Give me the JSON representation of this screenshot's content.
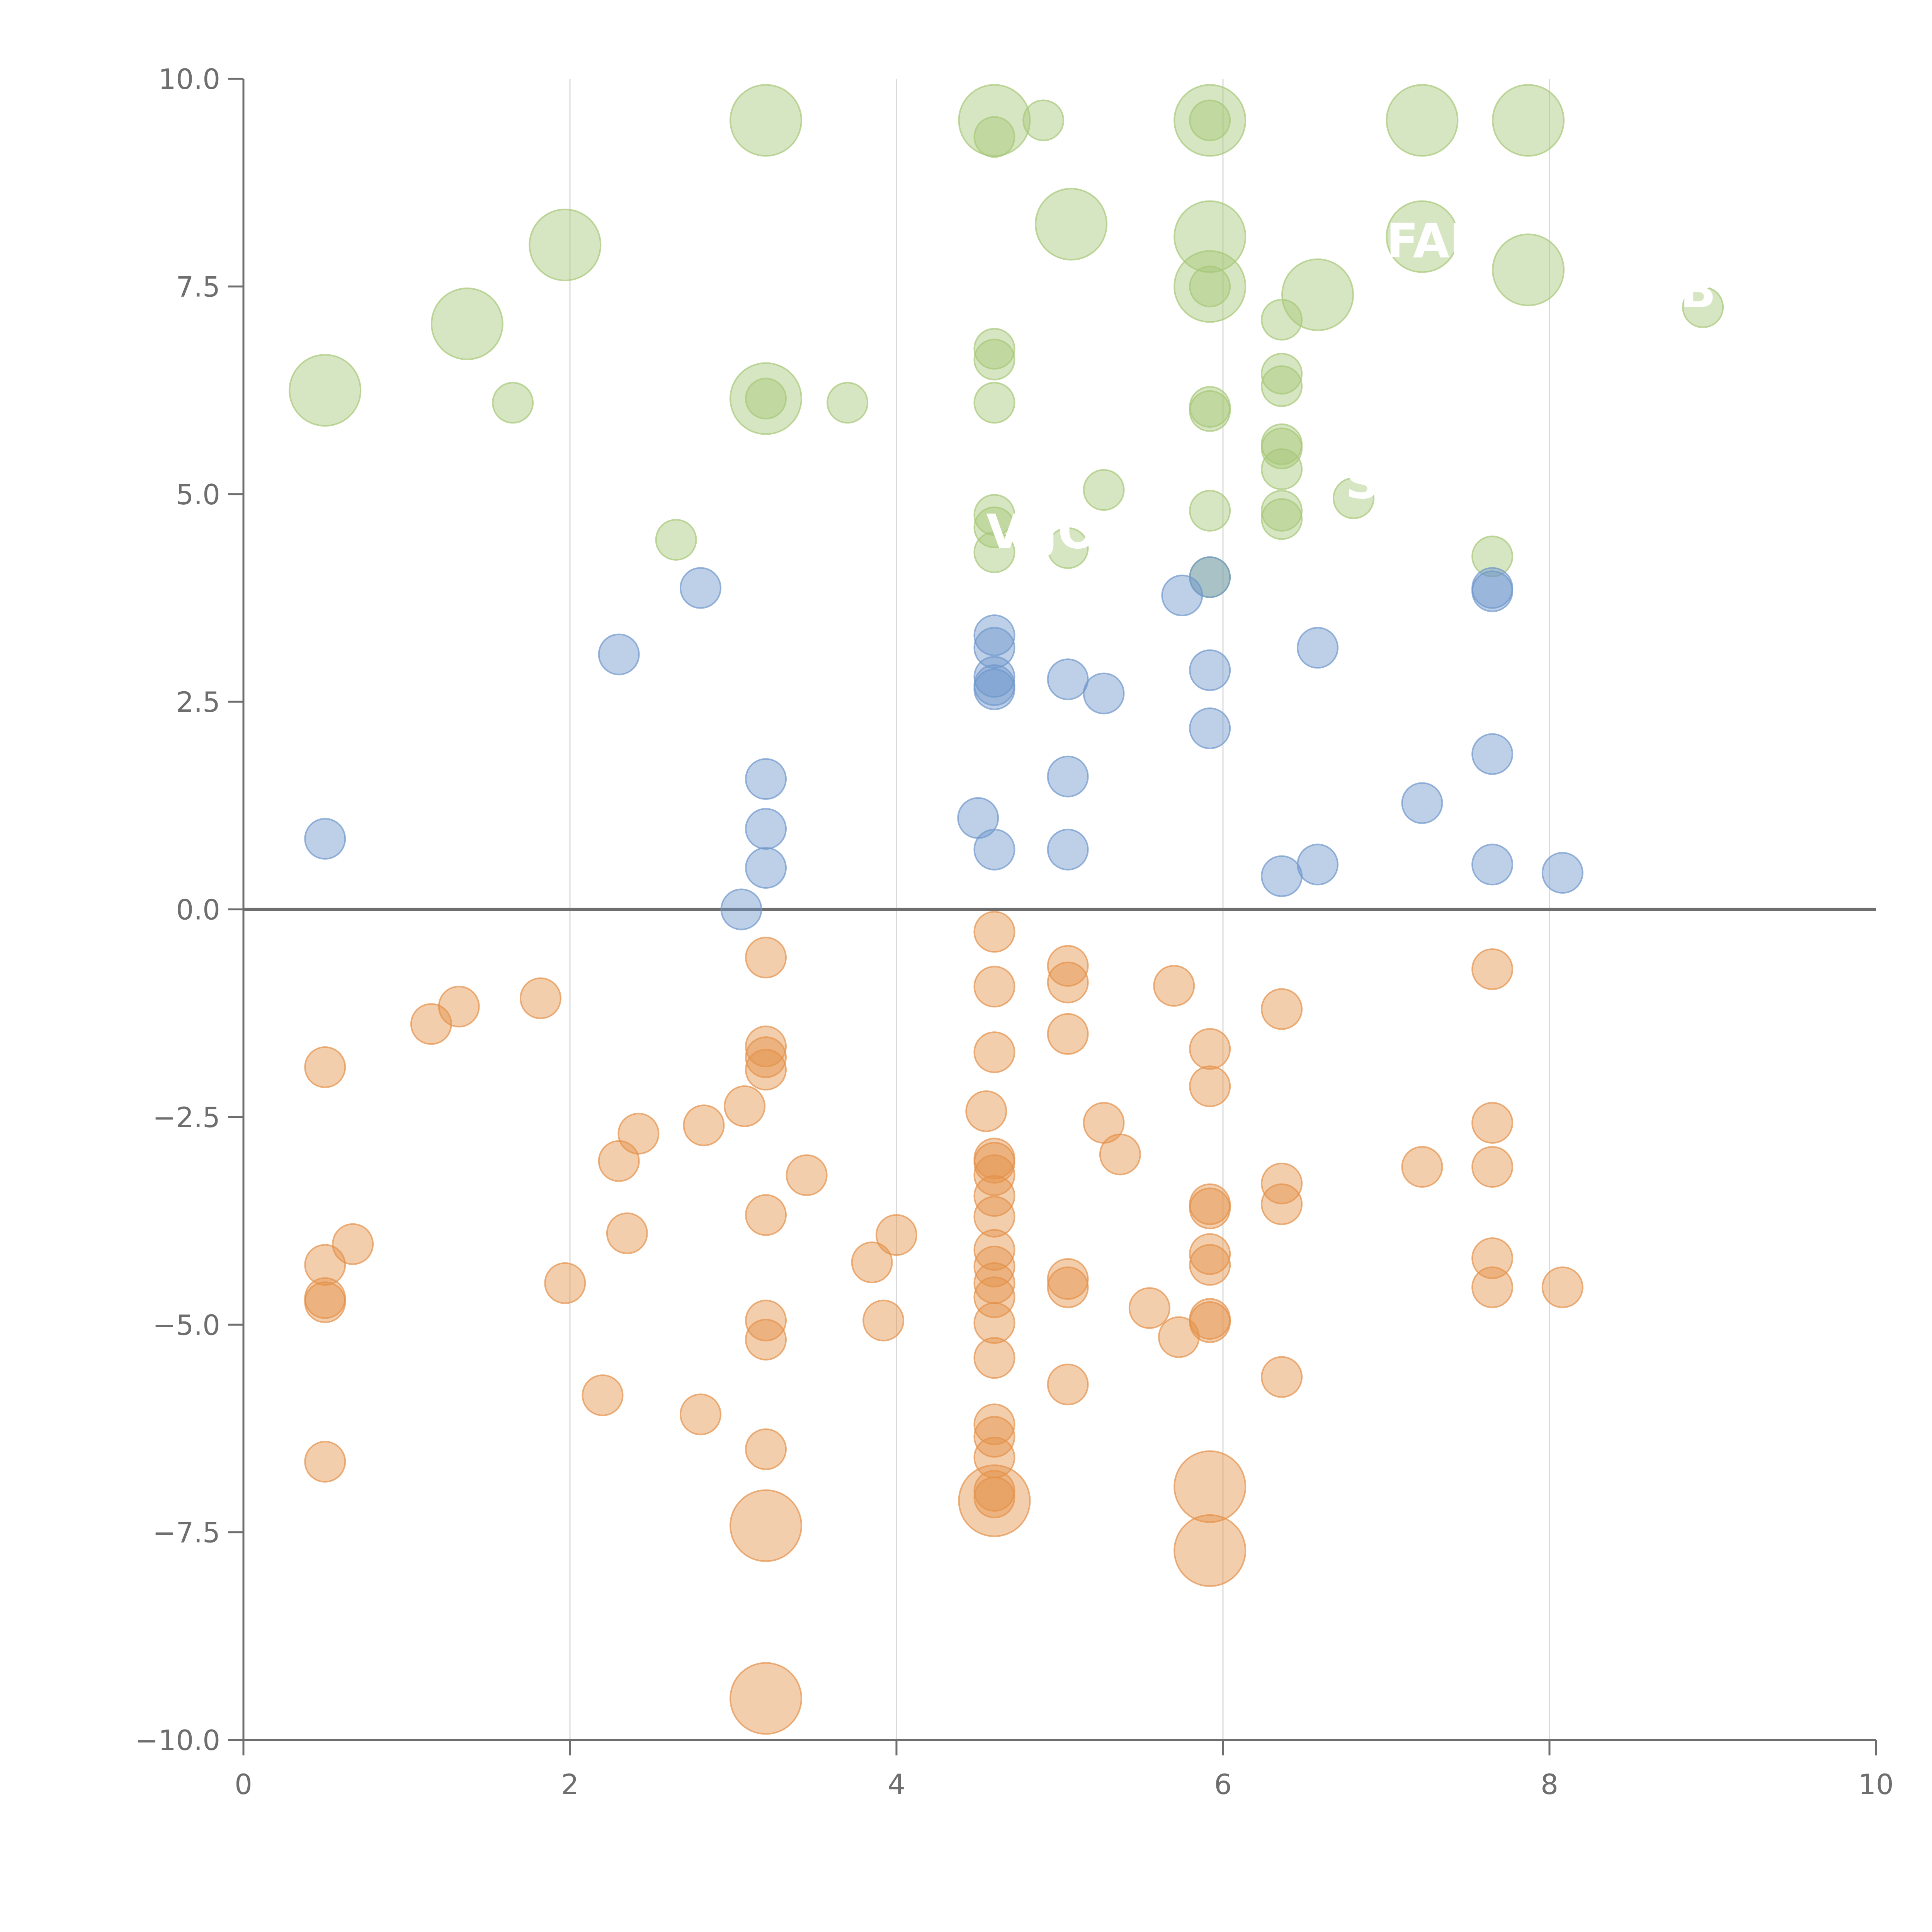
{
  "colors": {
    "positive": "#6f97cc",
    "negative": "#e4924a",
    "top": "#a6c878",
    "axis": "#6e6e6e",
    "zero_line": "#6e6e6e",
    "grid": "#d9d9d9",
    "label": "#ffffff"
  },
  "chart_data": {
    "type": "scatter",
    "title": "",
    "xlabel": "",
    "ylabel": "",
    "xlim": [
      0,
      10
    ],
    "ylim": [
      -10,
      10
    ],
    "x_ticks": [
      0,
      2,
      4,
      6,
      8,
      10
    ],
    "x_tick_labels": [
      "0",
      "2",
      "4",
      "6",
      "8",
      "10"
    ],
    "y_ticks": [
      10,
      7.5,
      5,
      2.5,
      0,
      -2.5,
      -5,
      -7.5,
      -10
    ],
    "y_tick_labels": [
      "10.0",
      "7.5",
      "5.0",
      "2.5",
      "0.0",
      "−2.5",
      "−5.0",
      "−7.5",
      "−10.0"
    ],
    "grid_x_values": [
      2,
      4,
      6,
      8
    ],
    "zero_line_y": 0,
    "series": [
      {
        "name": "top",
        "color_key": "top",
        "points": [
          [
            3.2,
            9.5,
            2
          ],
          [
            4.6,
            9.5,
            2
          ],
          [
            4.9,
            9.5,
            1
          ],
          [
            4.6,
            9.3,
            1
          ],
          [
            5.92,
            9.5,
            2
          ],
          [
            5.92,
            9.5,
            1
          ],
          [
            7.22,
            9.5,
            2
          ],
          [
            7.87,
            9.5,
            2
          ],
          [
            1.97,
            8.0,
            2
          ],
          [
            5.07,
            8.25,
            2
          ],
          [
            5.92,
            8.1,
            2
          ],
          [
            7.22,
            8.1,
            2
          ],
          [
            7.87,
            7.7,
            2
          ],
          [
            1.37,
            7.05,
            2
          ],
          [
            5.92,
            7.5,
            2
          ],
          [
            5.92,
            7.5,
            1
          ],
          [
            6.58,
            7.4,
            2
          ],
          [
            6.36,
            7.1,
            1
          ],
          [
            8.94,
            7.25,
            1
          ],
          [
            0.5,
            6.25,
            2
          ],
          [
            1.65,
            6.1,
            1
          ],
          [
            3.2,
            6.15,
            2
          ],
          [
            3.2,
            6.15,
            1
          ],
          [
            3.7,
            6.1,
            1
          ],
          [
            4.6,
            6.75,
            1
          ],
          [
            4.6,
            6.62,
            1
          ],
          [
            4.6,
            6.1,
            1
          ],
          [
            5.92,
            6.05,
            1
          ],
          [
            5.92,
            6.0,
            1
          ],
          [
            6.36,
            6.45,
            1
          ],
          [
            6.36,
            6.3,
            1
          ],
          [
            6.36,
            5.6,
            1
          ],
          [
            6.36,
            5.55,
            1
          ],
          [
            6.36,
            5.3,
            1
          ],
          [
            5.27,
            5.05,
            1
          ],
          [
            4.6,
            4.75,
            1
          ],
          [
            4.6,
            4.6,
            1
          ],
          [
            4.6,
            4.3,
            1
          ],
          [
            5.05,
            4.35,
            1
          ],
          [
            5.92,
            4.8,
            1
          ],
          [
            5.92,
            4.0,
            1
          ],
          [
            6.36,
            4.8,
            1
          ],
          [
            6.36,
            4.7,
            1
          ],
          [
            6.8,
            4.95,
            1
          ],
          [
            7.65,
            4.25,
            1
          ],
          [
            2.65,
            4.45,
            1
          ]
        ]
      },
      {
        "name": "positive",
        "color_key": "positive",
        "points": [
          [
            2.8,
            3.87,
            1
          ],
          [
            2.3,
            3.07,
            1
          ],
          [
            4.6,
            3.3,
            1
          ],
          [
            4.6,
            3.15,
            1
          ],
          [
            4.6,
            2.8,
            1
          ],
          [
            4.6,
            2.7,
            1
          ],
          [
            4.6,
            2.65,
            1
          ],
          [
            5.05,
            2.77,
            1
          ],
          [
            5.27,
            2.6,
            1
          ],
          [
            5.75,
            3.78,
            1
          ],
          [
            5.92,
            4.0,
            1
          ],
          [
            5.92,
            2.88,
            1
          ],
          [
            5.92,
            2.18,
            1
          ],
          [
            6.58,
            3.15,
            1
          ],
          [
            7.65,
            3.87,
            1
          ],
          [
            7.65,
            3.83,
            1
          ],
          [
            0.5,
            0.85,
            1
          ],
          [
            3.2,
            1.57,
            1
          ],
          [
            3.2,
            0.97,
            1
          ],
          [
            3.2,
            0.5,
            1
          ],
          [
            3.05,
            0.0,
            1
          ],
          [
            4.5,
            1.1,
            1
          ],
          [
            4.6,
            0.72,
            1
          ],
          [
            5.05,
            1.6,
            1
          ],
          [
            5.05,
            0.72,
            1
          ],
          [
            6.36,
            0.4,
            1
          ],
          [
            6.58,
            0.54,
            1
          ],
          [
            7.22,
            1.28,
            1
          ],
          [
            7.65,
            1.87,
            1
          ],
          [
            7.65,
            0.54,
            1
          ],
          [
            8.08,
            0.44,
            1
          ]
        ]
      },
      {
        "name": "negative",
        "color_key": "negative",
        "points": [
          [
            3.2,
            -0.58,
            1
          ],
          [
            4.6,
            -0.27,
            1
          ],
          [
            4.6,
            -0.93,
            1
          ],
          [
            5.05,
            -0.68,
            1
          ],
          [
            5.05,
            -0.88,
            1
          ],
          [
            5.7,
            -0.92,
            1
          ],
          [
            7.65,
            -0.72,
            1
          ],
          [
            6.36,
            -1.2,
            1
          ],
          [
            1.82,
            -1.07,
            1
          ],
          [
            1.32,
            -1.17,
            1
          ],
          [
            1.15,
            -1.38,
            1
          ],
          [
            0.5,
            -1.9,
            1
          ],
          [
            3.2,
            -1.65,
            1
          ],
          [
            3.2,
            -1.78,
            1
          ],
          [
            3.2,
            -1.93,
            1
          ],
          [
            4.6,
            -1.72,
            1
          ],
          [
            5.05,
            -1.5,
            1
          ],
          [
            5.92,
            -1.68,
            1
          ],
          [
            5.92,
            -2.13,
            1
          ],
          [
            3.07,
            -2.37,
            1
          ],
          [
            2.82,
            -2.6,
            1
          ],
          [
            2.42,
            -2.7,
            1
          ],
          [
            2.3,
            -3.03,
            1
          ],
          [
            3.45,
            -3.2,
            1
          ],
          [
            4.55,
            -2.43,
            1
          ],
          [
            5.27,
            -2.57,
            1
          ],
          [
            5.37,
            -2.95,
            1
          ],
          [
            7.65,
            -2.57,
            1
          ],
          [
            4.6,
            -3.0,
            1
          ],
          [
            4.6,
            -3.05,
            1
          ],
          [
            4.6,
            -3.2,
            1
          ],
          [
            4.6,
            -3.45,
            1
          ],
          [
            4.6,
            -3.7,
            1
          ],
          [
            7.22,
            -3.1,
            1
          ],
          [
            7.65,
            -3.1,
            1
          ],
          [
            6.36,
            -3.3,
            1
          ],
          [
            6.36,
            -3.55,
            1
          ],
          [
            5.92,
            -3.55,
            1
          ],
          [
            5.92,
            -3.6,
            1
          ],
          [
            3.2,
            -3.68,
            1
          ],
          [
            2.35,
            -3.9,
            1
          ],
          [
            0.67,
            -4.03,
            1
          ],
          [
            0.5,
            -4.28,
            1
          ],
          [
            1.97,
            -4.5,
            1
          ],
          [
            0.5,
            -4.68,
            1
          ],
          [
            0.5,
            -4.73,
            1
          ],
          [
            3.85,
            -4.25,
            1
          ],
          [
            4.0,
            -3.92,
            1
          ],
          [
            4.6,
            -4.1,
            1
          ],
          [
            4.6,
            -4.3,
            1
          ],
          [
            4.6,
            -4.5,
            1
          ],
          [
            4.6,
            -4.67,
            1
          ],
          [
            4.6,
            -4.98,
            1
          ],
          [
            5.05,
            -4.45,
            1
          ],
          [
            5.05,
            -4.55,
            1
          ],
          [
            5.92,
            -4.15,
            1
          ],
          [
            5.92,
            -4.28,
            1
          ],
          [
            7.65,
            -4.2,
            1
          ],
          [
            7.65,
            -4.55,
            1
          ],
          [
            8.08,
            -4.55,
            1
          ],
          [
            3.2,
            -4.95,
            1
          ],
          [
            3.2,
            -5.18,
            1
          ],
          [
            3.92,
            -4.95,
            1
          ],
          [
            5.55,
            -4.8,
            1
          ],
          [
            5.73,
            -5.15,
            1
          ],
          [
            5.92,
            -4.93,
            1
          ],
          [
            5.92,
            -4.97,
            1
          ],
          [
            4.6,
            -5.4,
            1
          ],
          [
            5.05,
            -5.72,
            1
          ],
          [
            6.36,
            -5.63,
            1
          ],
          [
            2.2,
            -5.85,
            1
          ],
          [
            2.8,
            -6.08,
            1
          ],
          [
            3.2,
            -6.5,
            1
          ],
          [
            0.5,
            -6.65,
            1
          ],
          [
            4.6,
            -6.2,
            1
          ],
          [
            4.6,
            -6.35,
            1
          ],
          [
            4.6,
            -6.6,
            1
          ],
          [
            4.6,
            -7.0,
            1
          ],
          [
            4.6,
            -7.08,
            1
          ],
          [
            4.6,
            -7.12,
            2
          ],
          [
            5.92,
            -6.95,
            2
          ],
          [
            5.92,
            -7.72,
            2
          ],
          [
            3.2,
            -7.42,
            2
          ],
          [
            3.2,
            -9.5,
            2
          ]
        ]
      }
    ],
    "labels": [
      {
        "text": "VIJO",
        "x": 4.55,
        "y": 4.35
      },
      {
        "text": "FAR",
        "x": 7.0,
        "y": 7.85
      },
      {
        "text": "SO",
        "x": 6.75,
        "y": 4.95
      },
      {
        "text": "B",
        "x": 8.8,
        "y": 7.25
      }
    ]
  }
}
